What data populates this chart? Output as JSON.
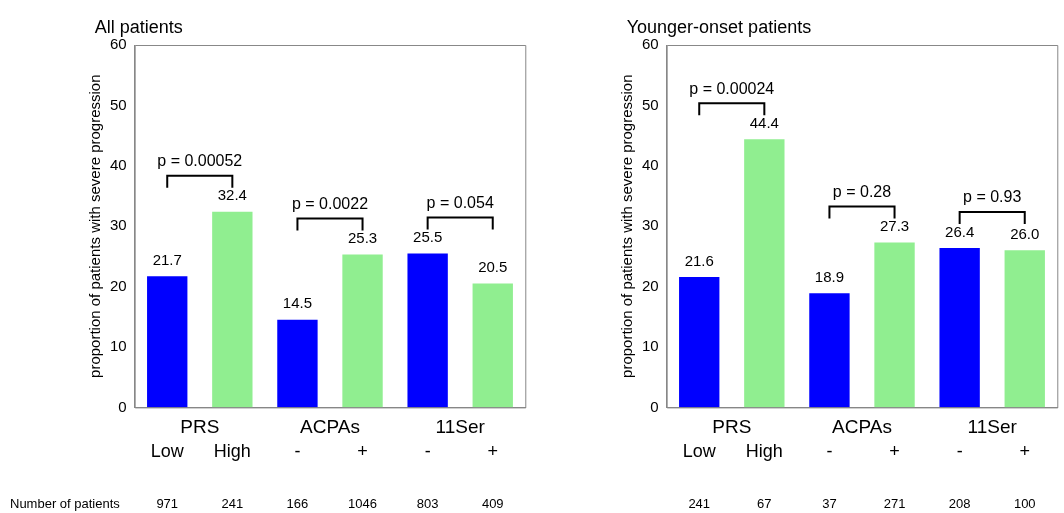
{
  "chart_data": [
    {
      "type": "bar",
      "title": "All patients",
      "ylabel": "proportion of patients with severe progression",
      "categories": [
        "Low",
        "High",
        "-",
        "+",
        "-",
        "+"
      ],
      "values": [
        21.7,
        32.4,
        14.5,
        25.3,
        25.5,
        20.5
      ],
      "value_labels": [
        "21.7",
        "32.4",
        "14.5",
        "25.3",
        "25.5",
        "20.5"
      ],
      "colors": [
        "#0000ff",
        "#90ee90",
        "#0000ff",
        "#90ee90",
        "#0000ff",
        "#90ee90"
      ],
      "ylim": [
        0,
        60
      ],
      "yticks": [
        0,
        10,
        20,
        30,
        40,
        50,
        60
      ],
      "grid": false,
      "legend": false,
      "annotations": [
        "p = 0.00052",
        "p = 0.0022",
        "p = 0.054",
        "PRS",
        "ACPAs",
        "11Ser",
        "Number of patients",
        "971",
        "241",
        "166",
        "1046",
        "803",
        "409"
      ]
    },
    {
      "type": "bar",
      "title": "Younger-onset patients",
      "ylabel": "proportion of patients with severe progression",
      "categories": [
        "Low",
        "High",
        "-",
        "+",
        "-",
        "+"
      ],
      "values": [
        21.6,
        44.4,
        18.9,
        27.3,
        26.4,
        26.0
      ],
      "value_labels": [
        "21.6",
        "44.4",
        "18.9",
        "27.3",
        "26.4",
        "26.0"
      ],
      "colors": [
        "#0000ff",
        "#90ee90",
        "#0000ff",
        "#90ee90",
        "#0000ff",
        "#90ee90"
      ],
      "ylim": [
        0,
        60
      ],
      "yticks": [
        0,
        10,
        20,
        30,
        40,
        50,
        60
      ],
      "grid": false,
      "legend": false,
      "annotations": [
        "p = 0.00024",
        "p = 0.28",
        "p = 0.93",
        "PRS",
        "ACPAs",
        "11Ser",
        "241",
        "67",
        "37",
        "271",
        "208",
        "100"
      ]
    }
  ]
}
